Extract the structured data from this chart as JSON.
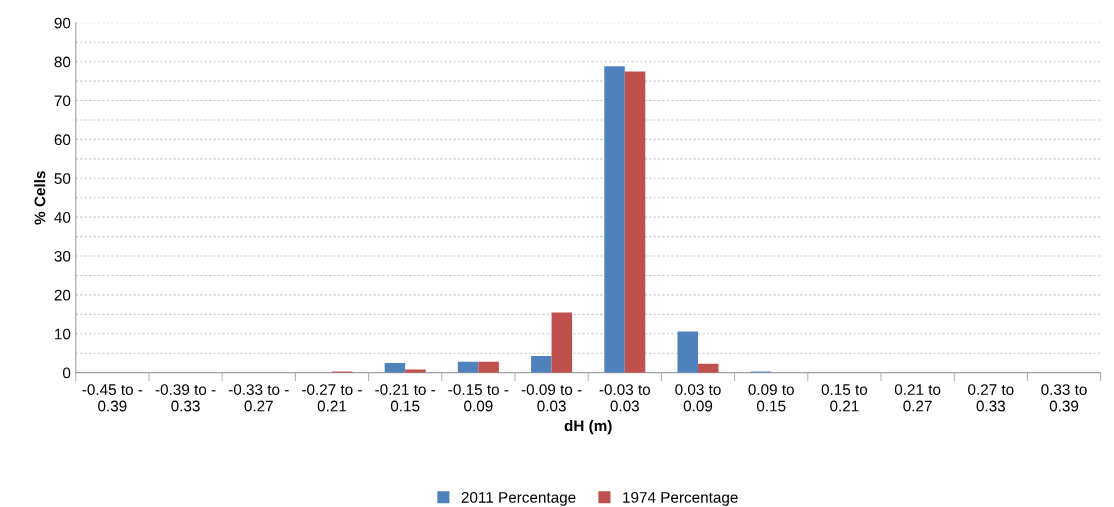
{
  "chart_data": {
    "type": "bar",
    "xlabel": "dH (m)",
    "ylabel": "% Cells",
    "categories": [
      "-0.45 to -\n0.39",
      "-0.39 to -\n0.33",
      "-0.33 to -\n0.27",
      "-0.27 to -\n0.21",
      "-0.21 to -\n0.15",
      "-0.15 to -\n0.09",
      "-0.09 to -\n0.03",
      "-0.03 to\n0.03",
      "0.03 to\n0.09",
      "0.09 to\n0.15",
      "0.15 to\n0.21",
      "0.21 to\n0.27",
      "0.27 to\n0.33",
      "0.33 to\n0.39"
    ],
    "series": [
      {
        "name": "2011 Percentage",
        "color": "#4f81bd",
        "values": [
          0,
          0,
          0,
          0,
          2.5,
          2.8,
          4.3,
          78.8,
          10.6,
          0.3,
          0,
          0,
          0,
          0
        ]
      },
      {
        "name": "1974 Percentage",
        "color": "#c0504d",
        "values": [
          0,
          0,
          0,
          0.3,
          0.8,
          2.8,
          15.5,
          77.5,
          2.3,
          0,
          0,
          0,
          0,
          0
        ]
      }
    ],
    "ylim": [
      0,
      90
    ],
    "yticks": [
      0,
      {
        "value": 5,
        "label": null
      },
      10,
      {
        "value": 15,
        "label": null
      },
      20,
      {
        "value": 25,
        "label": null
      },
      30,
      {
        "value": 35,
        "label": null
      },
      40,
      {
        "value": 45,
        "label": null
      },
      50,
      {
        "value": 55,
        "label": null
      },
      60,
      {
        "value": 65,
        "label": null
      },
      70,
      {
        "value": 75,
        "label": null
      },
      80,
      {
        "value": 85,
        "label": null
      },
      90
    ],
    "grid": "y",
    "legend": "bottom"
  }
}
